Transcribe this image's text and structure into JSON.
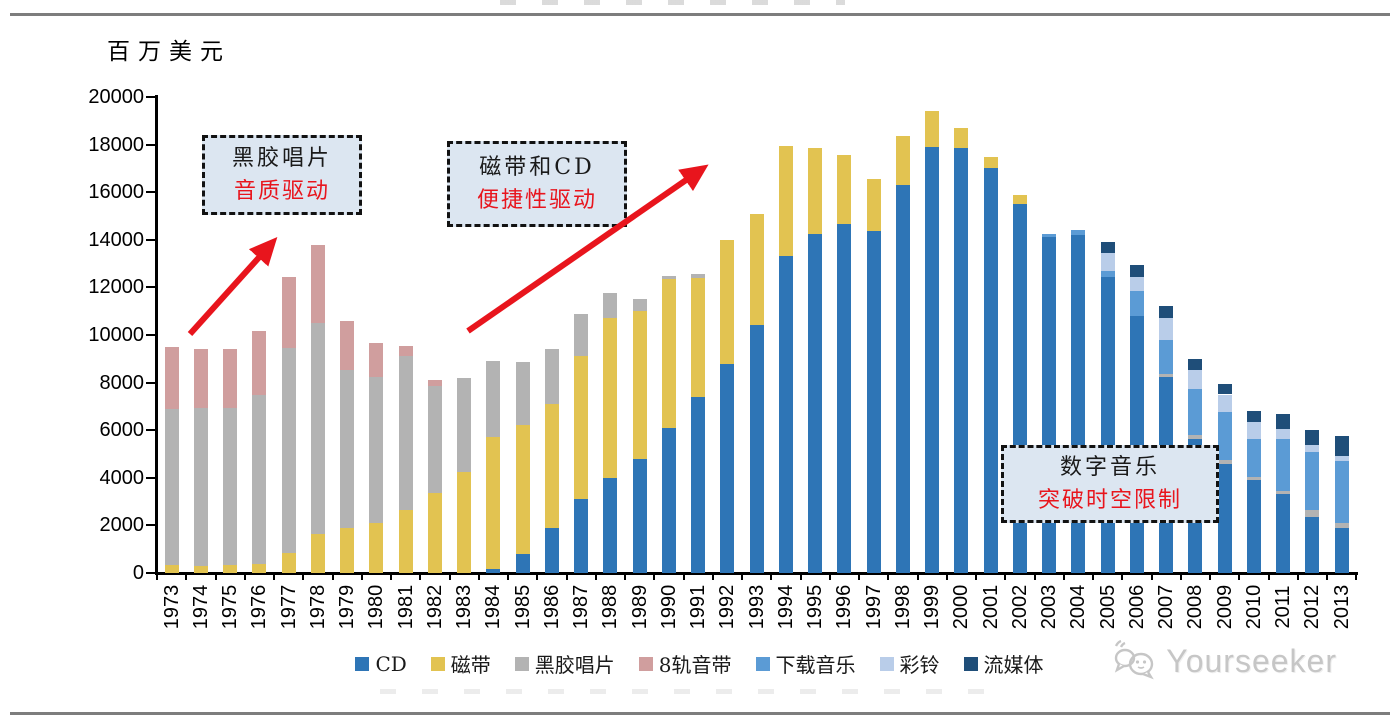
{
  "unit_label": "百万美元",
  "annotations": [
    {
      "title": "黑胶唱片",
      "subtitle": "音质驱动"
    },
    {
      "title": "磁带和CD",
      "subtitle": "便捷性驱动"
    },
    {
      "title": "数字音乐",
      "subtitle": "突破时空限制"
    }
  ],
  "watermark": {
    "text": "Yourseeker",
    "icon": "wechat-icon"
  },
  "colors": {
    "accent_red": "#e8151d",
    "annotation_fill": "#dce6f1",
    "annotation_border": "#121212",
    "axis": "#000000",
    "rule_gray": "#7d7d7d",
    "watermark_gray": "#c6c6c6"
  },
  "chart_data": {
    "type": "bar",
    "stacked": true,
    "title": "",
    "ylabel": "百万美元",
    "xlabel": "",
    "grid": false,
    "legend_position": "bottom",
    "ylim": [
      0,
      20000
    ],
    "y_ticks": [
      0,
      2000,
      4000,
      6000,
      8000,
      10000,
      12000,
      14000,
      16000,
      18000,
      20000
    ],
    "categories": [
      1973,
      1974,
      1975,
      1976,
      1977,
      1978,
      1979,
      1980,
      1981,
      1982,
      1983,
      1984,
      1985,
      1986,
      1987,
      1988,
      1989,
      1990,
      1991,
      1992,
      1993,
      1994,
      1995,
      1996,
      1997,
      1998,
      1999,
      2000,
      2001,
      2002,
      2003,
      2004,
      2005,
      2006,
      2007,
      2008,
      2009,
      2010,
      2011,
      2012,
      2013
    ],
    "series": [
      {
        "name": "CD",
        "color": "#2e75b6",
        "values": [
          0,
          0,
          0,
          0,
          0,
          0,
          0,
          0,
          0,
          0,
          0,
          150,
          800,
          1900,
          3100,
          4000,
          4800,
          6100,
          7400,
          8800,
          10400,
          13300,
          14250,
          14650,
          14350,
          16300,
          17900,
          17850,
          17000,
          15500,
          14100,
          14200,
          12450,
          10800,
          8250,
          5650,
          4600,
          3900,
          3300,
          2370,
          1880
        ]
      },
      {
        "name": "磁带",
        "color": "#e2c351",
        "values": [
          350,
          300,
          330,
          370,
          850,
          1650,
          1900,
          2100,
          2650,
          3350,
          4250,
          5550,
          5400,
          5200,
          6000,
          6700,
          6200,
          6250,
          5000,
          5200,
          4700,
          4650,
          3600,
          2900,
          2200,
          2050,
          1500,
          850,
          500,
          400,
          0,
          0,
          0,
          0,
          0,
          0,
          0,
          0,
          0,
          0,
          0
        ]
      },
      {
        "name": "黑胶唱片",
        "color": "#b3b3b3",
        "values": [
          6550,
          6650,
          6600,
          7100,
          8600,
          8850,
          6650,
          6150,
          6450,
          4500,
          3950,
          3200,
          2650,
          2300,
          1800,
          1050,
          500,
          150,
          150,
          0,
          0,
          0,
          0,
          0,
          0,
          0,
          0,
          0,
          0,
          0,
          0,
          0,
          0,
          0,
          100,
          150,
          150,
          150,
          150,
          280,
          240
        ]
      },
      {
        "name": "8轨音带",
        "color": "#d09e9e",
        "values": [
          2600,
          2450,
          2470,
          2680,
          3000,
          3300,
          2050,
          1400,
          450,
          280,
          0,
          0,
          0,
          0,
          0,
          0,
          0,
          0,
          0,
          0,
          0,
          0,
          0,
          0,
          0,
          0,
          0,
          0,
          0,
          0,
          0,
          0,
          0,
          0,
          0,
          0,
          0,
          0,
          0,
          0,
          0
        ]
      },
      {
        "name": "下载音乐",
        "color": "#5b9bd5",
        "values": [
          0,
          0,
          0,
          0,
          0,
          0,
          0,
          0,
          0,
          0,
          0,
          0,
          0,
          0,
          0,
          0,
          0,
          0,
          0,
          0,
          0,
          0,
          0,
          0,
          0,
          0,
          0,
          0,
          0,
          0,
          150,
          200,
          250,
          1050,
          1450,
          1950,
          2030,
          1570,
          2200,
          2450,
          2570
        ]
      },
      {
        "name": "彩铃",
        "color": "#b9cde9",
        "values": [
          0,
          0,
          0,
          0,
          0,
          0,
          0,
          0,
          0,
          0,
          0,
          0,
          0,
          0,
          0,
          0,
          0,
          0,
          0,
          0,
          0,
          0,
          0,
          0,
          0,
          0,
          0,
          0,
          0,
          0,
          0,
          0,
          750,
          600,
          900,
          800,
          720,
          740,
          400,
          280,
          240
        ]
      },
      {
        "name": "流媒体",
        "color": "#1f4e79",
        "values": [
          0,
          0,
          0,
          0,
          0,
          0,
          0,
          0,
          0,
          0,
          0,
          0,
          0,
          0,
          0,
          0,
          0,
          0,
          0,
          0,
          0,
          0,
          0,
          0,
          0,
          0,
          0,
          0,
          0,
          0,
          0,
          0,
          450,
          500,
          500,
          450,
          450,
          440,
          650,
          630,
          840
        ]
      }
    ]
  }
}
